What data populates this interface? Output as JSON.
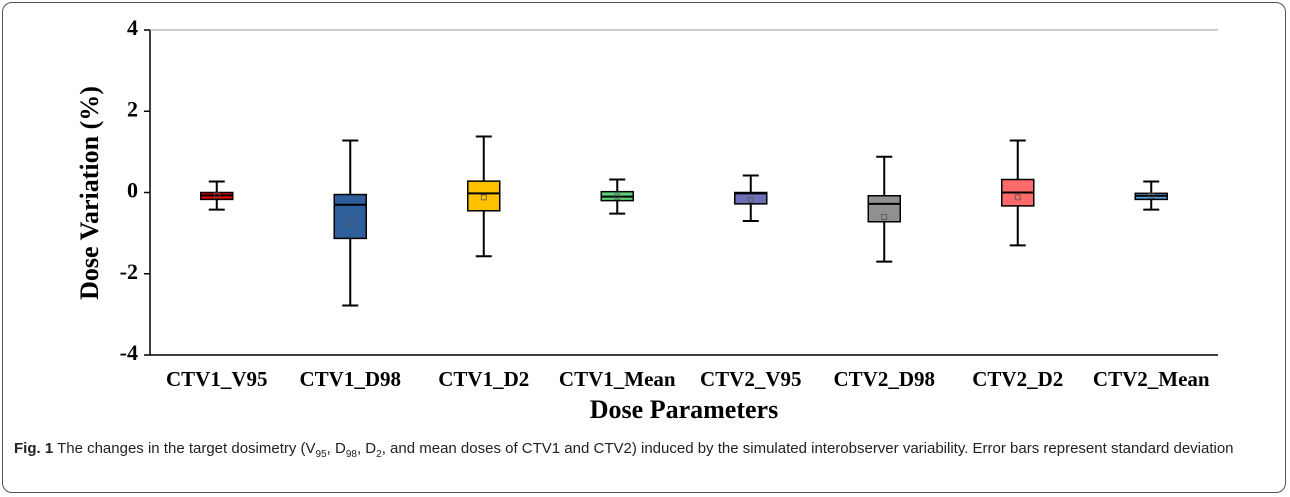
{
  "chart_data": {
    "type": "box",
    "x_label": "Dose Parameters",
    "y_label": "Dose Variation (%)",
    "categories": [
      "CTV1_V95",
      "CTV1_D98",
      "CTV1_D2",
      "CTV1_Mean",
      "CTV2_V95",
      "CTV2_D98",
      "CTV2_D2",
      "CTV2_Mean"
    ],
    "colors": [
      "#e60000",
      "#2e5f9a",
      "#ffc000",
      "#5fd07a",
      "#6f6fb8",
      "#909090",
      "#ff6b6b",
      "#5b9bd5"
    ],
    "min": [
      -0.42,
      -2.78,
      -1.57,
      -0.52,
      -0.7,
      -1.7,
      -1.3,
      -0.42
    ],
    "q1": [
      -0.17,
      -1.13,
      -0.45,
      -0.2,
      -0.28,
      -0.72,
      -0.33,
      -0.17
    ],
    "median": [
      -0.07,
      -0.3,
      -0.02,
      -0.1,
      -0.02,
      -0.28,
      0.0,
      -0.08
    ],
    "q3": [
      0.0,
      -0.05,
      0.28,
      0.02,
      0.0,
      -0.08,
      0.32,
      -0.02
    ],
    "max": [
      0.27,
      1.28,
      1.38,
      0.32,
      0.42,
      0.88,
      1.28,
      0.27
    ],
    "mean": [
      -0.07,
      -0.75,
      -0.12,
      -0.1,
      -0.18,
      -0.6,
      -0.12,
      -0.08
    ],
    "ylim": [
      -4,
      4
    ],
    "yticks": [
      -4,
      -2,
      0,
      2,
      4
    ]
  },
  "caption": {
    "label": "Fig. 1",
    "parts": [
      " The changes in the target dosimetry (V",
      "95",
      ", D",
      "98",
      ", D",
      "2",
      ", and mean doses of CTV1 and CTV2) induced by the simulated interobserver variability. Error bars represent standard deviation"
    ]
  }
}
